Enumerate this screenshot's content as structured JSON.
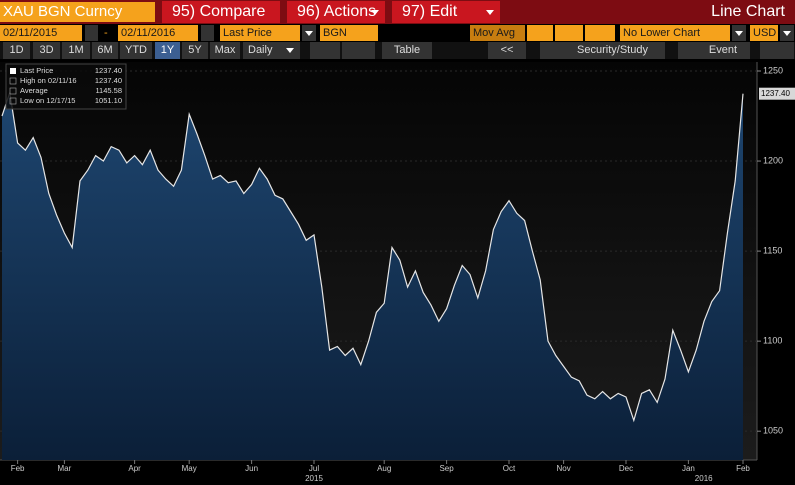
{
  "toolbar": {
    "security": "XAU BGN Curncy",
    "compare": "95) Compare",
    "actions": "96) Actions",
    "edit": "97) Edit",
    "chart_type": "Line Chart"
  },
  "controls": {
    "start_date": "02/11/2015",
    "separator": "-",
    "end_date": "02/11/2016",
    "field": "Last Price",
    "source": "BGN",
    "study": "Mov Avg",
    "lower_chart": "No Lower Chart",
    "currency": "USD"
  },
  "periods": [
    "1D",
    "3D",
    "1M",
    "6M",
    "YTD",
    "1Y",
    "5Y",
    "Max"
  ],
  "selected_period": "1Y",
  "frequency": "Daily",
  "tools": {
    "table": "Table",
    "back": "<<",
    "security_study": "Security/Study",
    "event": "Event"
  },
  "chart_data": {
    "type": "line",
    "color": "#e6e6e6",
    "fill": "#143456",
    "legend": [
      {
        "label": "Last Price",
        "value": "1237.40"
      },
      {
        "label": "High on 02/11/16",
        "value": "1237.40"
      },
      {
        "label": "Average",
        "value": "1145.58"
      },
      {
        "label": "Low on 12/17/15",
        "value": "1051.10"
      }
    ],
    "last_value_label": "1237.40",
    "categories": [
      null,
      null,
      "Feb",
      null,
      null,
      null,
      null,
      null,
      "Mar",
      null,
      null,
      null,
      null,
      null,
      null,
      null,
      null,
      "Apr",
      null,
      null,
      null,
      null,
      null,
      null,
      "May",
      null,
      null,
      null,
      null,
      null,
      null,
      null,
      "Jun",
      null,
      null,
      null,
      null,
      null,
      null,
      null,
      "Jul",
      null,
      null,
      null,
      null,
      null,
      null,
      null,
      null,
      "Aug",
      null,
      null,
      null,
      null,
      null,
      null,
      null,
      "Sep",
      null,
      null,
      null,
      null,
      null,
      null,
      null,
      "Oct",
      null,
      null,
      null,
      null,
      null,
      null,
      "Nov",
      null,
      null,
      null,
      null,
      null,
      null,
      null,
      "Dec",
      null,
      null,
      null,
      null,
      null,
      null,
      null,
      "Jan",
      null,
      null,
      null,
      null,
      null,
      null,
      "Feb"
    ],
    "x_year_labels": [
      "2015",
      "2016"
    ],
    "values": [
      1225,
      1238,
      1210,
      1206,
      1213,
      1202,
      1182,
      1170,
      1160,
      1152,
      1189,
      1195,
      1203,
      1200,
      1208,
      1206,
      1199,
      1203,
      1198,
      1206,
      1195,
      1190,
      1186,
      1195,
      1226,
      1215,
      1203,
      1190,
      1192,
      1188,
      1189,
      1182,
      1187,
      1196,
      1190,
      1181,
      1179,
      1172,
      1165,
      1156,
      1159,
      1130,
      1095,
      1097,
      1092,
      1096,
      1087,
      1100,
      1116,
      1121,
      1152,
      1145,
      1130,
      1139,
      1127,
      1120,
      1111,
      1118,
      1131,
      1142,
      1137,
      1124,
      1139,
      1162,
      1172,
      1178,
      1171,
      1167,
      1150,
      1134,
      1100,
      1092,
      1086,
      1080,
      1078,
      1070,
      1068,
      1072,
      1068,
      1071,
      1069,
      1056,
      1071,
      1073,
      1066,
      1079,
      1106,
      1095,
      1083,
      1095,
      1111,
      1122,
      1128,
      1160,
      1189,
      1237.4
    ],
    "ylim": [
      1034,
      1255
    ],
    "yticks": [
      1050,
      1100,
      1150,
      1200,
      1250
    ],
    "grid": true
  }
}
